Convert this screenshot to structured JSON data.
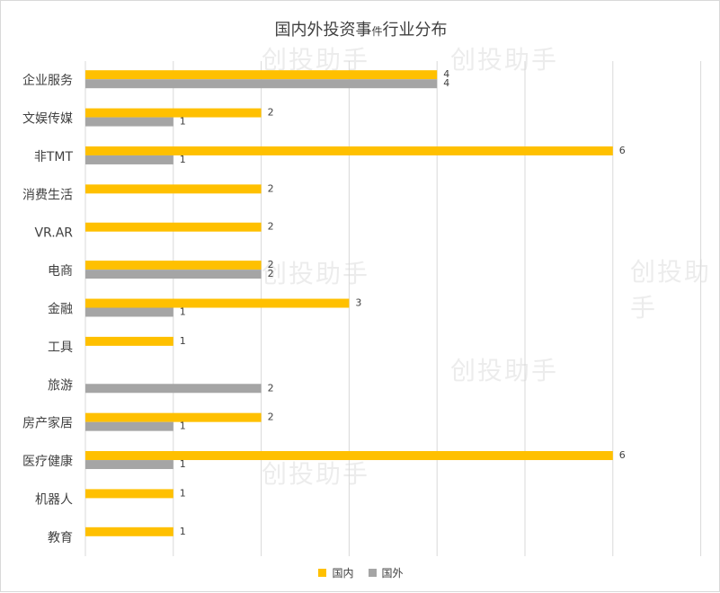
{
  "title_main": "国内外投资事",
  "title_small": "件",
  "title_tail": "行业分布",
  "watermark": "创投助手",
  "colors": {
    "domestic": "#FFC000",
    "foreign": "#A5A5A5",
    "grid": "#D9D9D9",
    "text": "#404040"
  },
  "chart_data": {
    "type": "bar",
    "orientation": "horizontal",
    "categories": [
      "企业服务",
      "文娱传媒",
      "非TMT",
      "消费生活",
      "VR.AR",
      "电商",
      "金融",
      "工具",
      "旅游",
      "房产家居",
      "医疗健康",
      "机器人",
      "教育"
    ],
    "series": [
      {
        "name": "国内",
        "values": [
          4,
          2,
          6,
          2,
          2,
          2,
          3,
          1,
          null,
          2,
          6,
          1,
          1
        ]
      },
      {
        "name": "国外",
        "values": [
          4,
          1,
          1,
          null,
          null,
          2,
          1,
          null,
          2,
          1,
          1,
          null,
          null
        ]
      }
    ],
    "xlim": [
      0,
      7
    ],
    "grid": true,
    "legend": "bottom"
  }
}
